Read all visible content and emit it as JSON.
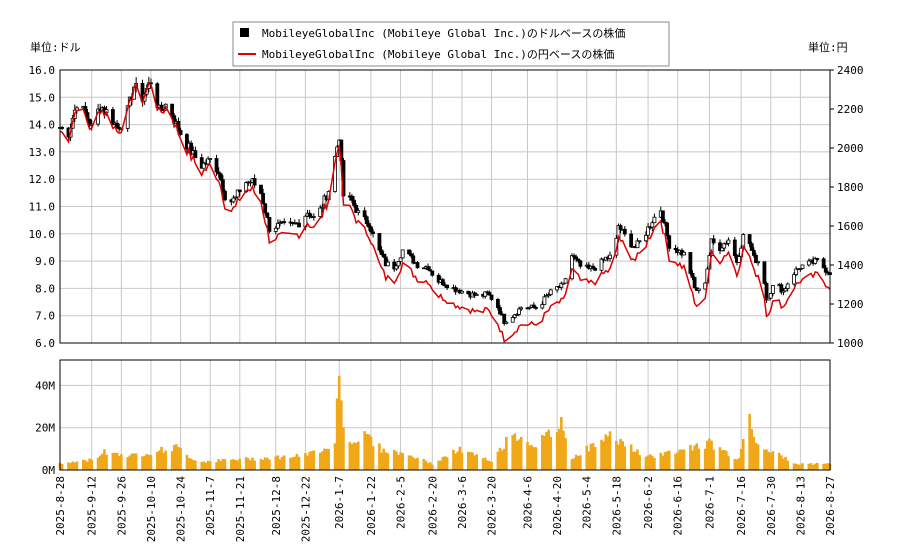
{
  "chart_data": {
    "type": "candlestick+volume",
    "legend": {
      "placement": "top-center",
      "entries": [
        {
          "label": "MobileyeGlobalInc (Mobileye Global Inc.)のドルベースの株価",
          "color": "#000000",
          "marker": "square"
        },
        {
          "label": "MobileyeGlobalInc (Mobileye Global Inc.)の円ベースの株価",
          "color": "#dd0000",
          "marker": "line"
        }
      ]
    },
    "left_unit_label": "単位:ドル",
    "right_unit_label": "単位:円",
    "price_axis_left": {
      "min": 6.0,
      "max": 16.0,
      "ticks": [
        "6.0",
        "7.0",
        "8.0",
        "9.0",
        "10.0",
        "11.0",
        "12.0",
        "13.0",
        "14.0",
        "15.0",
        "16.0"
      ]
    },
    "price_axis_right": {
      "min": 1000,
      "max": 2400,
      "ticks": [
        "1000",
        "1200",
        "1400",
        "1600",
        "1800",
        "2000",
        "2200",
        "2400"
      ]
    },
    "volume_axis": {
      "min": 0,
      "max": 52,
      "unit": "M",
      "ticks": [
        "0M",
        "20M",
        "40M"
      ],
      "tick_values": [
        0,
        20,
        40
      ]
    },
    "date_ticks": [
      "2025-8-28",
      "2025-9-12",
      "2025-9-26",
      "2025-10-10",
      "2025-10-24",
      "2025-11-7",
      "2025-11-21",
      "2025-12-8",
      "2025-12-22",
      "2026-1-7",
      "2026-1-22",
      "2026-2-5",
      "2026-2-20",
      "2026-3-6",
      "2026-3-20",
      "2026-4-6",
      "2026-4-20",
      "2026-5-4",
      "2026-5-18",
      "2026-6-2",
      "2026-6-16",
      "2026-7-1",
      "2026-7-16",
      "2026-7-30",
      "2026-8-13",
      "2026-8-27"
    ],
    "price_anchors_usd": [
      [
        "2025-8-28",
        13.9
      ],
      [
        "2025-9-1",
        13.7
      ],
      [
        "2025-9-5",
        14.8
      ],
      [
        "2025-9-9",
        14.4
      ],
      [
        "2025-9-12",
        13.9
      ],
      [
        "2025-9-16",
        14.7
      ],
      [
        "2025-9-20",
        14.4
      ],
      [
        "2025-9-24",
        13.9
      ],
      [
        "2025-9-28",
        14.2
      ],
      [
        "2025-10-2",
        15.4
      ],
      [
        "2025-10-6",
        15.0
      ],
      [
        "2025-10-10",
        15.6
      ],
      [
        "2025-10-14",
        14.5
      ],
      [
        "2025-10-18",
        14.8
      ],
      [
        "2025-10-22",
        14.0
      ],
      [
        "2025-10-26",
        13.4
      ],
      [
        "2025-10-30",
        12.9
      ],
      [
        "2025-11-3",
        12.5
      ],
      [
        "2025-11-7",
        12.7
      ],
      [
        "2025-11-11",
        12.3
      ],
      [
        "2025-11-15",
        11.1
      ],
      [
        "2025-11-19",
        11.3
      ],
      [
        "2025-11-23",
        11.9
      ],
      [
        "2025-11-27",
        11.9
      ],
      [
        "2025-12-1",
        11.5
      ],
      [
        "2025-12-5",
        10.2
      ],
      [
        "2025-12-9",
        10.3
      ],
      [
        "2025-12-15",
        10.3
      ],
      [
        "2025-12-19",
        10.4
      ],
      [
        "2025-12-23",
        10.8
      ],
      [
        "2025-12-27",
        10.5
      ],
      [
        "2026-1-2",
        11.6
      ],
      [
        "2026-1-5",
        12.8
      ],
      [
        "2026-1-7",
        13.6
      ],
      [
        "2026-1-9",
        11.4
      ],
      [
        "2026-1-13",
        11.2
      ],
      [
        "2026-1-17",
        10.6
      ],
      [
        "2026-1-21",
        10.4
      ],
      [
        "2026-1-25",
        9.5
      ],
      [
        "2026-1-29",
        8.9
      ],
      [
        "2026-2-2",
        8.8
      ],
      [
        "2026-2-6",
        9.4
      ],
      [
        "2026-2-10",
        9.1
      ],
      [
        "2026-2-14",
        8.8
      ],
      [
        "2026-2-18",
        8.8
      ],
      [
        "2026-2-22",
        8.3
      ],
      [
        "2026-2-26",
        8.2
      ],
      [
        "2026-3-2",
        8.0
      ],
      [
        "2026-3-6",
        7.9
      ],
      [
        "2026-3-10",
        7.8
      ],
      [
        "2026-3-14",
        7.7
      ],
      [
        "2026-3-18",
        7.8
      ],
      [
        "2026-3-22",
        7.5
      ],
      [
        "2026-3-26",
        6.8
      ],
      [
        "2026-3-30",
        7.0
      ],
      [
        "2026-4-3",
        7.3
      ],
      [
        "2026-4-7",
        7.3
      ],
      [
        "2026-4-11",
        7.3
      ],
      [
        "2026-4-15",
        7.7
      ],
      [
        "2026-4-19",
        8.0
      ],
      [
        "2026-4-23",
        8.1
      ],
      [
        "2026-4-27",
        9.2
      ],
      [
        "2026-5-1",
        8.8
      ],
      [
        "2026-5-5",
        8.7
      ],
      [
        "2026-5-9",
        8.8
      ],
      [
        "2026-5-13",
        9.1
      ],
      [
        "2026-5-17",
        9.2
      ],
      [
        "2026-5-19",
        10.3
      ],
      [
        "2026-5-23",
        9.8
      ],
      [
        "2026-5-27",
        9.5
      ],
      [
        "2026-5-31",
        9.9
      ],
      [
        "2026-6-4",
        10.5
      ],
      [
        "2026-6-8",
        10.9
      ],
      [
        "2026-6-12",
        9.6
      ],
      [
        "2026-6-16",
        9.4
      ],
      [
        "2026-6-20",
        9.2
      ],
      [
        "2026-6-24",
        8.0
      ],
      [
        "2026-6-28",
        7.8
      ],
      [
        "2026-7-2",
        9.7
      ],
      [
        "2026-7-6",
        9.5
      ],
      [
        "2026-7-10",
        9.8
      ],
      [
        "2026-7-14",
        9.0
      ],
      [
        "2026-7-18",
        10.2
      ],
      [
        "2026-7-22",
        9.1
      ],
      [
        "2026-7-26",
        8.9
      ],
      [
        "2026-7-28",
        7.6
      ],
      [
        "2026-8-1",
        8.2
      ],
      [
        "2026-8-5",
        7.9
      ],
      [
        "2026-8-9",
        8.5
      ],
      [
        "2026-8-13",
        8.8
      ],
      [
        "2026-8-17",
        8.9
      ],
      [
        "2026-8-21",
        9.0
      ],
      [
        "2026-8-25",
        8.7
      ],
      [
        "2026-8-27",
        8.6
      ]
    ],
    "volume_anchors_m": [
      [
        "2025-8-28",
        3
      ],
      [
        "2025-9-12",
        5
      ],
      [
        "2025-9-18",
        9
      ],
      [
        "2025-10-1",
        7
      ],
      [
        "2025-10-22",
        11
      ],
      [
        "2025-11-1",
        4
      ],
      [
        "2025-12-22",
        7
      ],
      [
        "2026-1-5",
        13
      ],
      [
        "2026-1-7",
        52
      ],
      [
        "2026-1-9",
        20
      ],
      [
        "2026-1-12",
        14
      ],
      [
        "2026-1-20",
        17
      ],
      [
        "2026-1-27",
        10
      ],
      [
        "2026-2-10",
        7
      ],
      [
        "2026-2-20",
        3
      ],
      [
        "2026-3-5",
        10
      ],
      [
        "2026-3-20",
        4
      ],
      [
        "2026-3-30",
        18
      ],
      [
        "2026-4-10",
        12
      ],
      [
        "2026-4-22",
        22
      ],
      [
        "2026-4-27",
        6
      ],
      [
        "2026-5-16",
        17
      ],
      [
        "2026-6-1",
        6
      ],
      [
        "2026-6-18",
        10
      ],
      [
        "2026-7-1",
        13
      ],
      [
        "2026-7-15",
        5
      ],
      [
        "2026-7-20",
        30
      ],
      [
        "2026-7-22",
        15
      ],
      [
        "2026-7-26",
        12
      ],
      [
        "2026-8-10",
        3
      ],
      [
        "2026-8-27",
        3
      ]
    ]
  }
}
